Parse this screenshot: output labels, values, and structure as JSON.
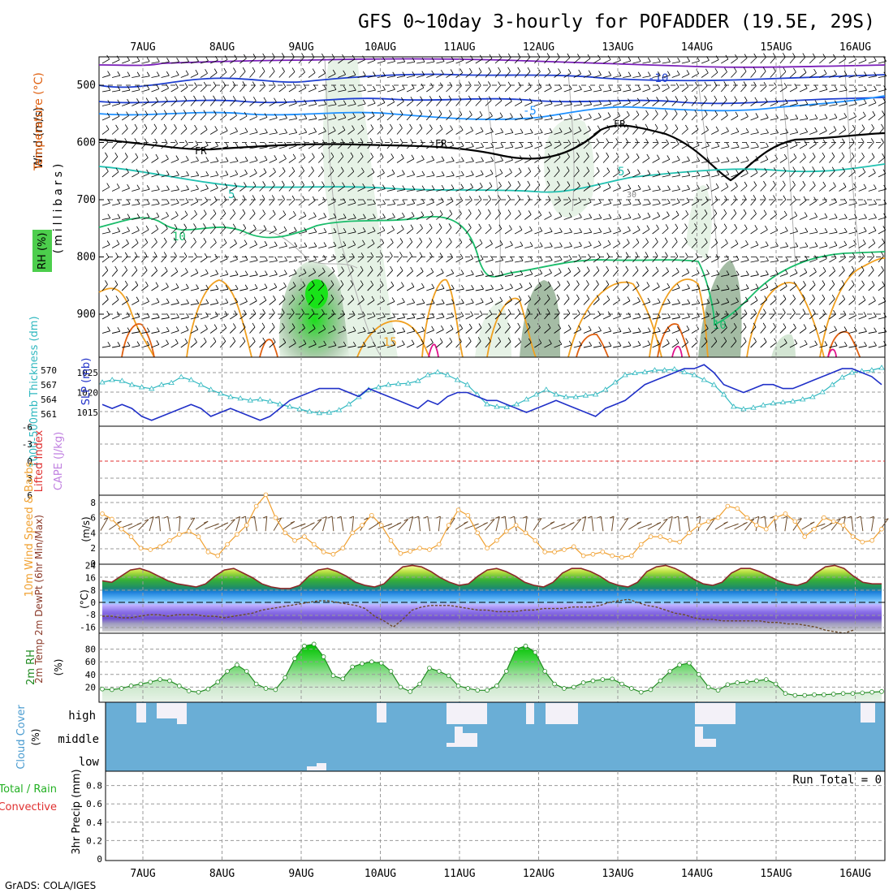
{
  "title": "GFS 0~10day 3-hourly for POFADDER (19.5E, 29S)",
  "credit": "GrADS: COLA/IGES",
  "days": [
    "7AUG",
    "8AUG",
    "9AUG",
    "10AUG",
    "11AUG",
    "12AUG",
    "13AUG",
    "14AUG",
    "15AUG",
    "16AUG"
  ],
  "colors": {
    "grid": "#9a9a9a",
    "freezing": "#000000",
    "t_cold_purple": "#7a1fb8",
    "t_cold_blue": "#1f3fd0",
    "t_blue": "#1e90ff",
    "t_teal": "#20c0b0",
    "t_green": "#1abc6a",
    "t_orange": "#f0a020",
    "t_deep_orange": "#e06010",
    "t_magenta": "#e0108a",
    "rh_green": "#8fd08f",
    "slp": "#2030c8",
    "thickness": "#30b8c0",
    "lifted_zero": "#e03030",
    "wind_speed": "#f0a030",
    "barb": "#6b4a2a",
    "rh2m": "#228b22",
    "cloud": "#6aaed6",
    "precip": "#000000"
  },
  "panels": {
    "upper_air": {
      "labels": [
        "Wind (m/s)",
        "Temperature (°C)",
        "RH (%)"
      ],
      "axis_label": "(millibars)",
      "yticks": [
        500,
        600,
        700,
        800,
        900
      ],
      "contour_labels": [
        "-10",
        "-5",
        "FR",
        "FR",
        "FR",
        "5",
        "5",
        "10",
        "10",
        "15",
        "30"
      ]
    },
    "slp_thickness": {
      "left_label": "1000-500mb Thickness (dm)",
      "right_label": "SLP (mb)",
      "thickness_ticks": [
        570,
        567,
        564,
        561
      ],
      "slp_ticks": [
        1025,
        1020,
        1015
      ]
    },
    "stability": {
      "left_label": "Lifted Index",
      "right_label": "CAPE (J/kg)",
      "yticks": [
        "-6",
        "-3",
        "0",
        "3",
        "6"
      ]
    },
    "wind10m": {
      "label": "10m Wind Speed & Barbs",
      "unit": "(m/s)",
      "yticks": [
        "8",
        "6",
        "4",
        "2",
        "0"
      ]
    },
    "temp2m": {
      "label": "2m Temp 2m DewPt (6hr Min/Max)",
      "unit": "(°C)",
      "yticks": [
        "24",
        "16",
        "8",
        "0",
        "-8",
        "-16"
      ]
    },
    "rh2m": {
      "label": "2m RH",
      "unit": "(%)",
      "yticks": [
        "80",
        "60",
        "40",
        "20"
      ]
    },
    "cloud": {
      "label": "Cloud Cover",
      "unit": "(%)",
      "levels": [
        "high",
        "middle",
        "low"
      ]
    },
    "precip": {
      "label": "3hr Precip (mm)",
      "legend1": "Total / Rain",
      "legend2": "Convective",
      "run_total": "Run Total = 0",
      "yticks": [
        "0.8",
        "0.6",
        "0.4",
        "0.2",
        "0"
      ]
    }
  },
  "chart_data": [
    {
      "type": "line",
      "panel": "1000-500mb thickness / SLP",
      "x_unit": "3-hour steps from 6AUG 12Z",
      "series": [
        {
          "name": "SLP (mb)",
          "values": [
            1017,
            1016,
            1017,
            1016,
            1014,
            1013,
            1014,
            1015,
            1016,
            1017,
            1016,
            1014,
            1015,
            1016,
            1015,
            1014,
            1013,
            1014,
            1016,
            1018,
            1019,
            1020,
            1021,
            1021,
            1021,
            1020,
            1019,
            1021,
            1020,
            1019,
            1018,
            1017,
            1016,
            1018,
            1017,
            1019,
            1020,
            1020,
            1019,
            1018,
            1018,
            1017,
            1016,
            1015,
            1016,
            1017,
            1018,
            1017,
            1016,
            1015,
            1014,
            1016,
            1017,
            1018,
            1020,
            1022,
            1023,
            1024,
            1025,
            1026,
            1026,
            1027,
            1025,
            1022,
            1021,
            1020,
            1021,
            1022,
            1022,
            1021,
            1021,
            1022,
            1023,
            1024,
            1025,
            1026,
            1026,
            1025,
            1024,
            1022
          ]
        },
        {
          "name": "1000-500mb Thickness (dm)",
          "values": [
            567.5,
            568,
            567.8,
            567,
            566.5,
            566.2,
            567,
            567.4,
            568.6,
            568,
            567,
            566,
            565.2,
            564.5,
            564.2,
            563.8,
            564,
            563.6,
            563,
            562.5,
            562,
            561.5,
            561.2,
            561.3,
            561.8,
            563,
            564.5,
            566,
            566.5,
            567,
            567.2,
            567.3,
            567.8,
            569,
            569.6,
            569,
            568,
            567,
            565,
            563,
            562.5,
            562.4,
            563,
            564,
            565,
            566,
            565,
            564.5,
            564.5,
            564.8,
            565,
            566,
            567.5,
            569,
            569.4,
            569.6,
            570,
            570,
            570.2,
            569.6,
            569,
            568,
            567,
            565,
            562.5,
            562,
            562.3,
            562.8,
            563.2,
            563.4,
            563.6,
            564,
            564.5,
            565.5,
            567,
            568.5,
            569.5,
            569.8,
            570,
            570.5
          ]
        }
      ]
    },
    {
      "type": "line",
      "panel": "10m Wind Speed",
      "series": [
        {
          "name": "10m Wind Speed (m/s)",
          "values": [
            6.5,
            5.8,
            4.5,
            3.5,
            2,
            1.8,
            2.2,
            3,
            3.8,
            4.2,
            3.5,
            1.5,
            1,
            2.5,
            3.8,
            5,
            7.5,
            9,
            6,
            4,
            3,
            3.5,
            2.5,
            1.5,
            1.2,
            2,
            4,
            5,
            6.3,
            5,
            3,
            1.3,
            1.6,
            2,
            1.8,
            2.5,
            5,
            7,
            6.3,
            4,
            2,
            3,
            4.2,
            5,
            4,
            3,
            1.5,
            1.5,
            1.8,
            2.2,
            1,
            1.2,
            1.5,
            1,
            0.8,
            1,
            2.5,
            3.5,
            3.5,
            3,
            2.8,
            4,
            5,
            5.5,
            6,
            7.5,
            7.2,
            6,
            5,
            4.5,
            6,
            6.5,
            5.5,
            3.5,
            4.5,
            6,
            5.5,
            5,
            3.5,
            2.8,
            3,
            4.5
          ]
        }
      ]
    },
    {
      "type": "line",
      "panel": "2m Temp / DewPt",
      "series": [
        {
          "name": "2m Temp (°C)",
          "values": [
            14,
            13,
            17,
            21,
            22,
            20,
            17,
            14,
            12,
            11,
            10,
            12,
            17,
            21,
            22,
            19,
            16,
            12,
            10,
            9,
            9,
            11,
            17,
            21,
            22,
            20,
            17,
            13,
            11,
            10,
            12,
            18,
            23,
            24,
            23,
            20,
            16,
            13,
            11,
            12,
            17,
            21,
            22,
            20,
            17,
            13,
            11,
            10,
            13,
            19,
            22,
            22,
            20,
            17,
            13,
            11,
            10,
            13,
            20,
            23,
            24,
            22,
            19,
            15,
            12,
            11,
            13,
            19,
            22,
            22,
            20,
            17,
            14,
            12,
            11,
            13,
            19,
            23,
            24,
            22,
            17,
            13,
            12,
            12
          ]
        },
        {
          "name": "2m DewPt (°C)",
          "values": [
            -9,
            -9,
            -10,
            -10,
            -9,
            -8,
            -8,
            -9,
            -8,
            -8,
            -8,
            -9,
            -9,
            -10,
            -9,
            -8,
            -7,
            -5,
            -4,
            -3,
            -2,
            -1,
            0,
            1,
            1,
            0,
            -1,
            -2,
            -4,
            -9,
            -12,
            -16,
            -11,
            -5,
            -3,
            -2,
            -2,
            -2,
            -3,
            -4,
            -5,
            -5,
            -6,
            -6,
            -6,
            -5,
            -5,
            -4,
            -4,
            -4,
            -3,
            -3,
            -3,
            -2,
            0,
            1,
            2,
            0,
            -2,
            -3,
            -5,
            -7,
            -8,
            -10,
            -11,
            -11,
            -12,
            -12,
            -12,
            -12,
            -12,
            -13,
            -13,
            -14,
            -14,
            -15,
            -16,
            -18,
            -19,
            -20,
            -18
          ]
        }
      ]
    },
    {
      "type": "area",
      "panel": "2m RH",
      "series": [
        {
          "name": "2m RH (%)",
          "values": [
            17,
            16,
            18,
            22,
            25,
            28,
            32,
            30,
            22,
            14,
            12,
            17,
            28,
            45,
            55,
            45,
            25,
            18,
            16,
            35,
            65,
            85,
            88,
            68,
            38,
            33,
            52,
            57,
            60,
            58,
            45,
            20,
            13,
            25,
            50,
            45,
            38,
            22,
            18,
            15,
            15,
            22,
            45,
            80,
            85,
            75,
            45,
            25,
            18,
            20,
            27,
            30,
            32,
            33,
            25,
            18,
            12,
            16,
            30,
            45,
            55,
            58,
            40,
            20,
            15,
            24,
            27,
            28,
            30,
            32,
            25,
            10,
            7,
            7,
            8,
            8,
            9,
            10,
            10,
            11,
            12,
            13
          ]
        }
      ]
    },
    {
      "type": "bar",
      "panel": "3hr Precip",
      "series": [
        {
          "name": "Total / Rain (mm)",
          "values": []
        },
        {
          "name": "Convective (mm)",
          "values": []
        }
      ],
      "ylim": [
        0,
        0.9
      ]
    }
  ]
}
